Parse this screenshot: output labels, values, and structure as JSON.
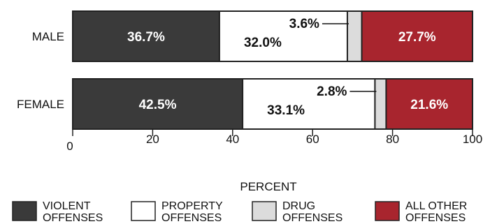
{
  "chart_data": {
    "type": "bar",
    "orientation": "horizontal",
    "stacked": true,
    "categories": [
      "MALE",
      "FEMALE"
    ],
    "series": [
      {
        "name": "VIOLENT OFFENSES",
        "values": [
          36.7,
          42.5
        ],
        "labels": [
          "36.7%",
          "42.5%"
        ],
        "color": "#3a3a3a",
        "label_color": "#ffffff"
      },
      {
        "name": "PROPERTY OFFENSES",
        "values": [
          32.0,
          33.1
        ],
        "labels": [
          "32.0%",
          "33.1%"
        ],
        "color": "#ffffff",
        "label_color": "#111111"
      },
      {
        "name": "DRUG OFFENSES",
        "values": [
          3.6,
          2.8
        ],
        "labels": [
          "3.6%",
          "2.8%"
        ],
        "color": "#dcdcdc",
        "label_color": "#111111"
      },
      {
        "name": "ALL OTHER OFFENSES",
        "values": [
          27.7,
          21.6
        ],
        "labels": [
          "27.7%",
          "21.6%"
        ],
        "color": "#a8252e",
        "label_color": "#ffffff"
      }
    ],
    "xlabel": "PERCENT",
    "xlim": [
      0,
      100
    ],
    "xticks": [
      0,
      20,
      40,
      60,
      80,
      100
    ],
    "xtick_labels": [
      "0",
      "20",
      "40",
      "60",
      "80",
      "100"
    ],
    "legend": {
      "position": "bottom",
      "entries": [
        {
          "line1": "VIOLENT",
          "line2": "OFFENSES"
        },
        {
          "line1": "PROPERTY",
          "line2": "OFFENSES"
        },
        {
          "line1": "DRUG",
          "line2": "OFFENSES"
        },
        {
          "line1": "ALL OTHER",
          "line2": "OFFENSES"
        }
      ]
    },
    "grid": false
  }
}
